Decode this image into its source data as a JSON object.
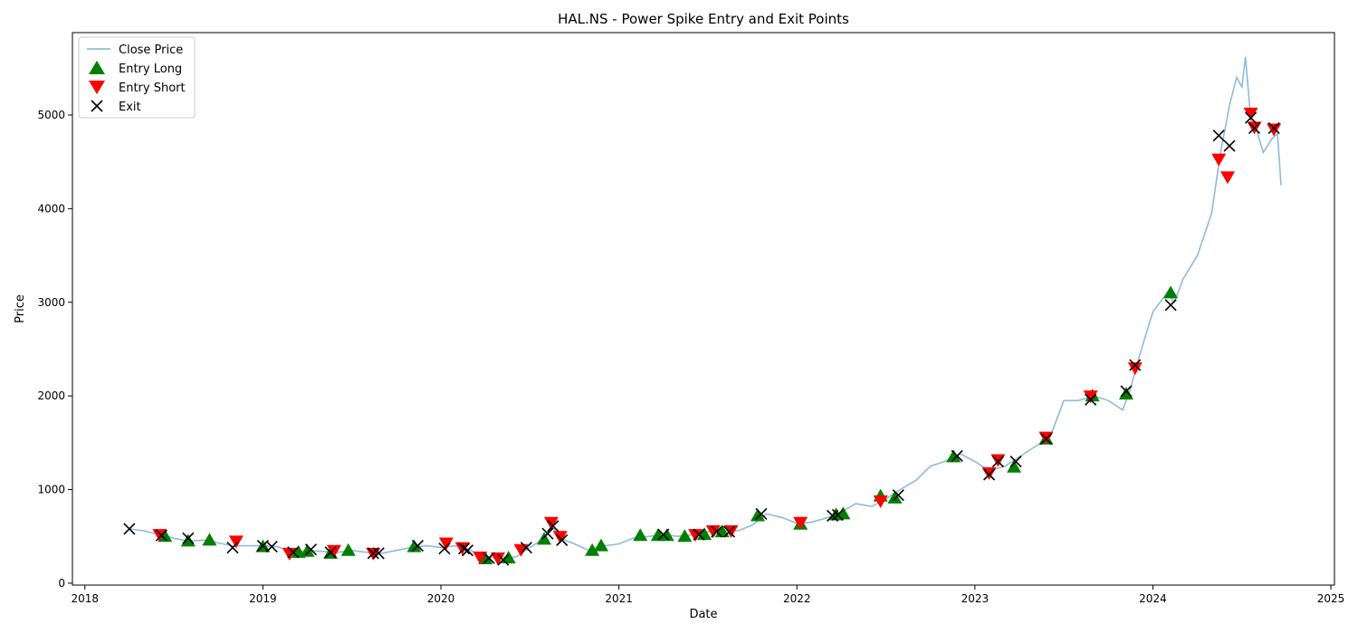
{
  "chart_data": {
    "type": "line",
    "title": "HAL.NS - Power Spike Entry and Exit Points",
    "xlabel": "Date",
    "ylabel": "Price",
    "xlim": [
      2017.93,
      2025.02
    ],
    "ylim": [
      -20,
      5880
    ],
    "x_ticks": [
      2018,
      2019,
      2020,
      2021,
      2022,
      2023,
      2024,
      2025
    ],
    "y_ticks": [
      0,
      1000,
      2000,
      3000,
      4000,
      5000
    ],
    "grid": false,
    "legend": {
      "placement": "top-left",
      "entries": [
        {
          "label": "Close Price",
          "marker": "line",
          "color": "#1f77b4"
        },
        {
          "label": "Entry Long",
          "marker": "triangle-up",
          "color": "#008000"
        },
        {
          "label": "Entry Short",
          "marker": "triangle-down",
          "color": "#ff0000"
        },
        {
          "label": "Exit",
          "marker": "x",
          "color": "#000000"
        }
      ]
    },
    "series": [
      {
        "name": "Close Price",
        "color": "#1f77b4",
        "points": [
          [
            2018.25,
            580
          ],
          [
            2018.33,
            560
          ],
          [
            2018.42,
            520
          ],
          [
            2018.5,
            480
          ],
          [
            2018.58,
            450
          ],
          [
            2018.67,
            460
          ],
          [
            2018.75,
            430
          ],
          [
            2018.83,
            400
          ],
          [
            2018.92,
            400
          ],
          [
            2019.0,
            400
          ],
          [
            2019.08,
            390
          ],
          [
            2019.17,
            330
          ],
          [
            2019.25,
            350
          ],
          [
            2019.33,
            340
          ],
          [
            2019.42,
            330
          ],
          [
            2019.5,
            350
          ],
          [
            2019.58,
            330
          ],
          [
            2019.67,
            320
          ],
          [
            2019.75,
            350
          ],
          [
            2019.83,
            380
          ],
          [
            2019.92,
            400
          ],
          [
            2020.0,
            380
          ],
          [
            2020.08,
            400
          ],
          [
            2020.17,
            350
          ],
          [
            2020.25,
            270
          ],
          [
            2020.33,
            280
          ],
          [
            2020.42,
            280
          ],
          [
            2020.5,
            380
          ],
          [
            2020.58,
            480
          ],
          [
            2020.62,
            620
          ],
          [
            2020.67,
            480
          ],
          [
            2020.75,
            420
          ],
          [
            2020.83,
            350
          ],
          [
            2020.92,
            400
          ],
          [
            2021.0,
            420
          ],
          [
            2021.08,
            480
          ],
          [
            2021.17,
            500
          ],
          [
            2021.25,
            520
          ],
          [
            2021.33,
            500
          ],
          [
            2021.42,
            520
          ],
          [
            2021.5,
            550
          ],
          [
            2021.58,
            560
          ],
          [
            2021.67,
            560
          ],
          [
            2021.75,
            620
          ],
          [
            2021.83,
            740
          ],
          [
            2021.92,
            700
          ],
          [
            2022.0,
            640
          ],
          [
            2022.08,
            650
          ],
          [
            2022.17,
            700
          ],
          [
            2022.25,
            760
          ],
          [
            2022.33,
            850
          ],
          [
            2022.42,
            820
          ],
          [
            2022.5,
            900
          ],
          [
            2022.58,
            1000
          ],
          [
            2022.67,
            1100
          ],
          [
            2022.75,
            1250
          ],
          [
            2022.83,
            1300
          ],
          [
            2022.92,
            1380
          ],
          [
            2023.0,
            1300
          ],
          [
            2023.08,
            1200
          ],
          [
            2023.17,
            1250
          ],
          [
            2023.25,
            1350
          ],
          [
            2023.33,
            1450
          ],
          [
            2023.42,
            1550
          ],
          [
            2023.5,
            1950
          ],
          [
            2023.58,
            1950
          ],
          [
            2023.67,
            2000
          ],
          [
            2023.75,
            1950
          ],
          [
            2023.83,
            1850
          ],
          [
            2023.87,
            2050
          ],
          [
            2023.92,
            2400
          ],
          [
            2024.0,
            2900
          ],
          [
            2024.08,
            3100
          ],
          [
            2024.12,
            3000
          ],
          [
            2024.17,
            3250
          ],
          [
            2024.25,
            3500
          ],
          [
            2024.33,
            3950
          ],
          [
            2024.38,
            4600
          ],
          [
            2024.43,
            5100
          ],
          [
            2024.47,
            5400
          ],
          [
            2024.5,
            5300
          ],
          [
            2024.52,
            5620
          ],
          [
            2024.55,
            4950
          ],
          [
            2024.58,
            4850
          ],
          [
            2024.62,
            4600
          ],
          [
            2024.67,
            4750
          ],
          [
            2024.7,
            4800
          ],
          [
            2024.72,
            4250
          ]
        ]
      }
    ],
    "entry_long": [
      [
        2018.45,
        500
      ],
      [
        2018.58,
        450
      ],
      [
        2018.7,
        460
      ],
      [
        2019.0,
        390
      ],
      [
        2019.2,
        330
      ],
      [
        2019.25,
        340
      ],
      [
        2019.38,
        320
      ],
      [
        2019.48,
        350
      ],
      [
        2019.85,
        390
      ],
      [
        2020.25,
        260
      ],
      [
        2020.38,
        270
      ],
      [
        2020.58,
        470
      ],
      [
        2020.85,
        350
      ],
      [
        2020.9,
        400
      ],
      [
        2021.12,
        510
      ],
      [
        2021.22,
        510
      ],
      [
        2021.27,
        510
      ],
      [
        2021.37,
        500
      ],
      [
        2021.48,
        520
      ],
      [
        2021.58,
        550
      ],
      [
        2021.78,
        720
      ],
      [
        2022.02,
        630
      ],
      [
        2022.22,
        730
      ],
      [
        2022.26,
        740
      ],
      [
        2022.47,
        930
      ],
      [
        2022.55,
        910
      ],
      [
        2022.88,
        1350
      ],
      [
        2023.22,
        1240
      ],
      [
        2023.4,
        1540
      ],
      [
        2023.66,
        2000
      ],
      [
        2023.85,
        2020
      ],
      [
        2024.1,
        3100
      ]
    ],
    "entry_short": [
      [
        2018.42,
        520
      ],
      [
        2018.85,
        450
      ],
      [
        2019.15,
        320
      ],
      [
        2019.4,
        350
      ],
      [
        2019.62,
        320
      ],
      [
        2020.03,
        430
      ],
      [
        2020.12,
        380
      ],
      [
        2020.22,
        280
      ],
      [
        2020.32,
        270
      ],
      [
        2020.45,
        360
      ],
      [
        2020.62,
        650
      ],
      [
        2020.67,
        500
      ],
      [
        2021.43,
        520
      ],
      [
        2021.53,
        560
      ],
      [
        2021.63,
        560
      ],
      [
        2022.02,
        650
      ],
      [
        2022.47,
        880
      ],
      [
        2023.08,
        1180
      ],
      [
        2023.13,
        1320
      ],
      [
        2023.4,
        1560
      ],
      [
        2023.65,
        2000
      ],
      [
        2023.9,
        2300
      ],
      [
        2024.37,
        4530
      ],
      [
        2024.42,
        4340
      ],
      [
        2024.55,
        5020
      ],
      [
        2024.57,
        4870
      ],
      [
        2024.68,
        4850
      ]
    ],
    "exit": [
      [
        2018.25,
        580
      ],
      [
        2018.43,
        510
      ],
      [
        2018.58,
        480
      ],
      [
        2018.83,
        380
      ],
      [
        2019.0,
        400
      ],
      [
        2019.05,
        390
      ],
      [
        2019.17,
        330
      ],
      [
        2019.27,
        360
      ],
      [
        2019.38,
        330
      ],
      [
        2019.62,
        320
      ],
      [
        2019.65,
        320
      ],
      [
        2019.87,
        400
      ],
      [
        2020.02,
        370
      ],
      [
        2020.13,
        370
      ],
      [
        2020.15,
        350
      ],
      [
        2020.27,
        270
      ],
      [
        2020.35,
        250
      ],
      [
        2020.48,
        380
      ],
      [
        2020.6,
        530
      ],
      [
        2020.63,
        610
      ],
      [
        2020.68,
        460
      ],
      [
        2021.25,
        520
      ],
      [
        2021.45,
        520
      ],
      [
        2021.55,
        550
      ],
      [
        2021.62,
        550
      ],
      [
        2021.8,
        740
      ],
      [
        2022.2,
        720
      ],
      [
        2022.23,
        730
      ],
      [
        2022.57,
        940
      ],
      [
        2022.9,
        1360
      ],
      [
        2023.08,
        1160
      ],
      [
        2023.13,
        1300
      ],
      [
        2023.23,
        1300
      ],
      [
        2023.4,
        1540
      ],
      [
        2023.65,
        1960
      ],
      [
        2023.85,
        2050
      ],
      [
        2023.9,
        2330
      ],
      [
        2024.1,
        2970
      ],
      [
        2024.37,
        4780
      ],
      [
        2024.43,
        4670
      ],
      [
        2024.55,
        4970
      ],
      [
        2024.57,
        4860
      ],
      [
        2024.68,
        4860
      ]
    ]
  }
}
